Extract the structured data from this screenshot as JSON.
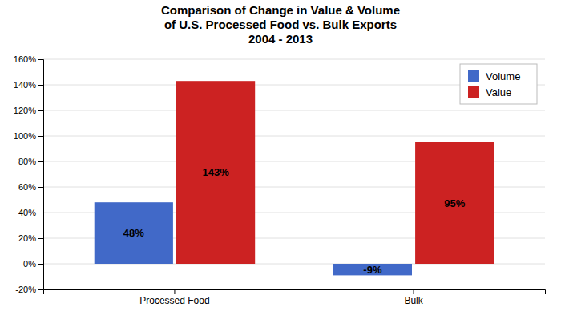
{
  "chart_data": {
    "type": "bar",
    "title": "Comparison of Change in Value & Volume\nof U.S. Processed Food vs. Bulk Exports\n2004 - 2013",
    "categories": [
      "Processed Food",
      "Bulk"
    ],
    "series": [
      {
        "name": "Volume",
        "color": "#4169C8",
        "values": [
          48,
          -9
        ],
        "value_labels": [
          "48%",
          "-9%"
        ]
      },
      {
        "name": "Value",
        "color": "#CC2222",
        "values": [
          143,
          95
        ],
        "value_labels": [
          "143%",
          "95%"
        ]
      }
    ],
    "ylim": [
      -20,
      160
    ],
    "yticks": [
      {
        "value": -20,
        "label": "-20%"
      },
      {
        "value": 0,
        "label": "0%"
      },
      {
        "value": 20,
        "label": "20%"
      },
      {
        "value": 40,
        "label": "40%"
      },
      {
        "value": 60,
        "label": "60%"
      },
      {
        "value": 80,
        "label": "80%"
      },
      {
        "value": 100,
        "label": "100%"
      },
      {
        "value": 120,
        "label": "120%"
      },
      {
        "value": 140,
        "label": "140%"
      },
      {
        "value": 160,
        "label": "160%"
      }
    ],
    "grid": true,
    "legend": "upper-right",
    "data_labels": true
  }
}
